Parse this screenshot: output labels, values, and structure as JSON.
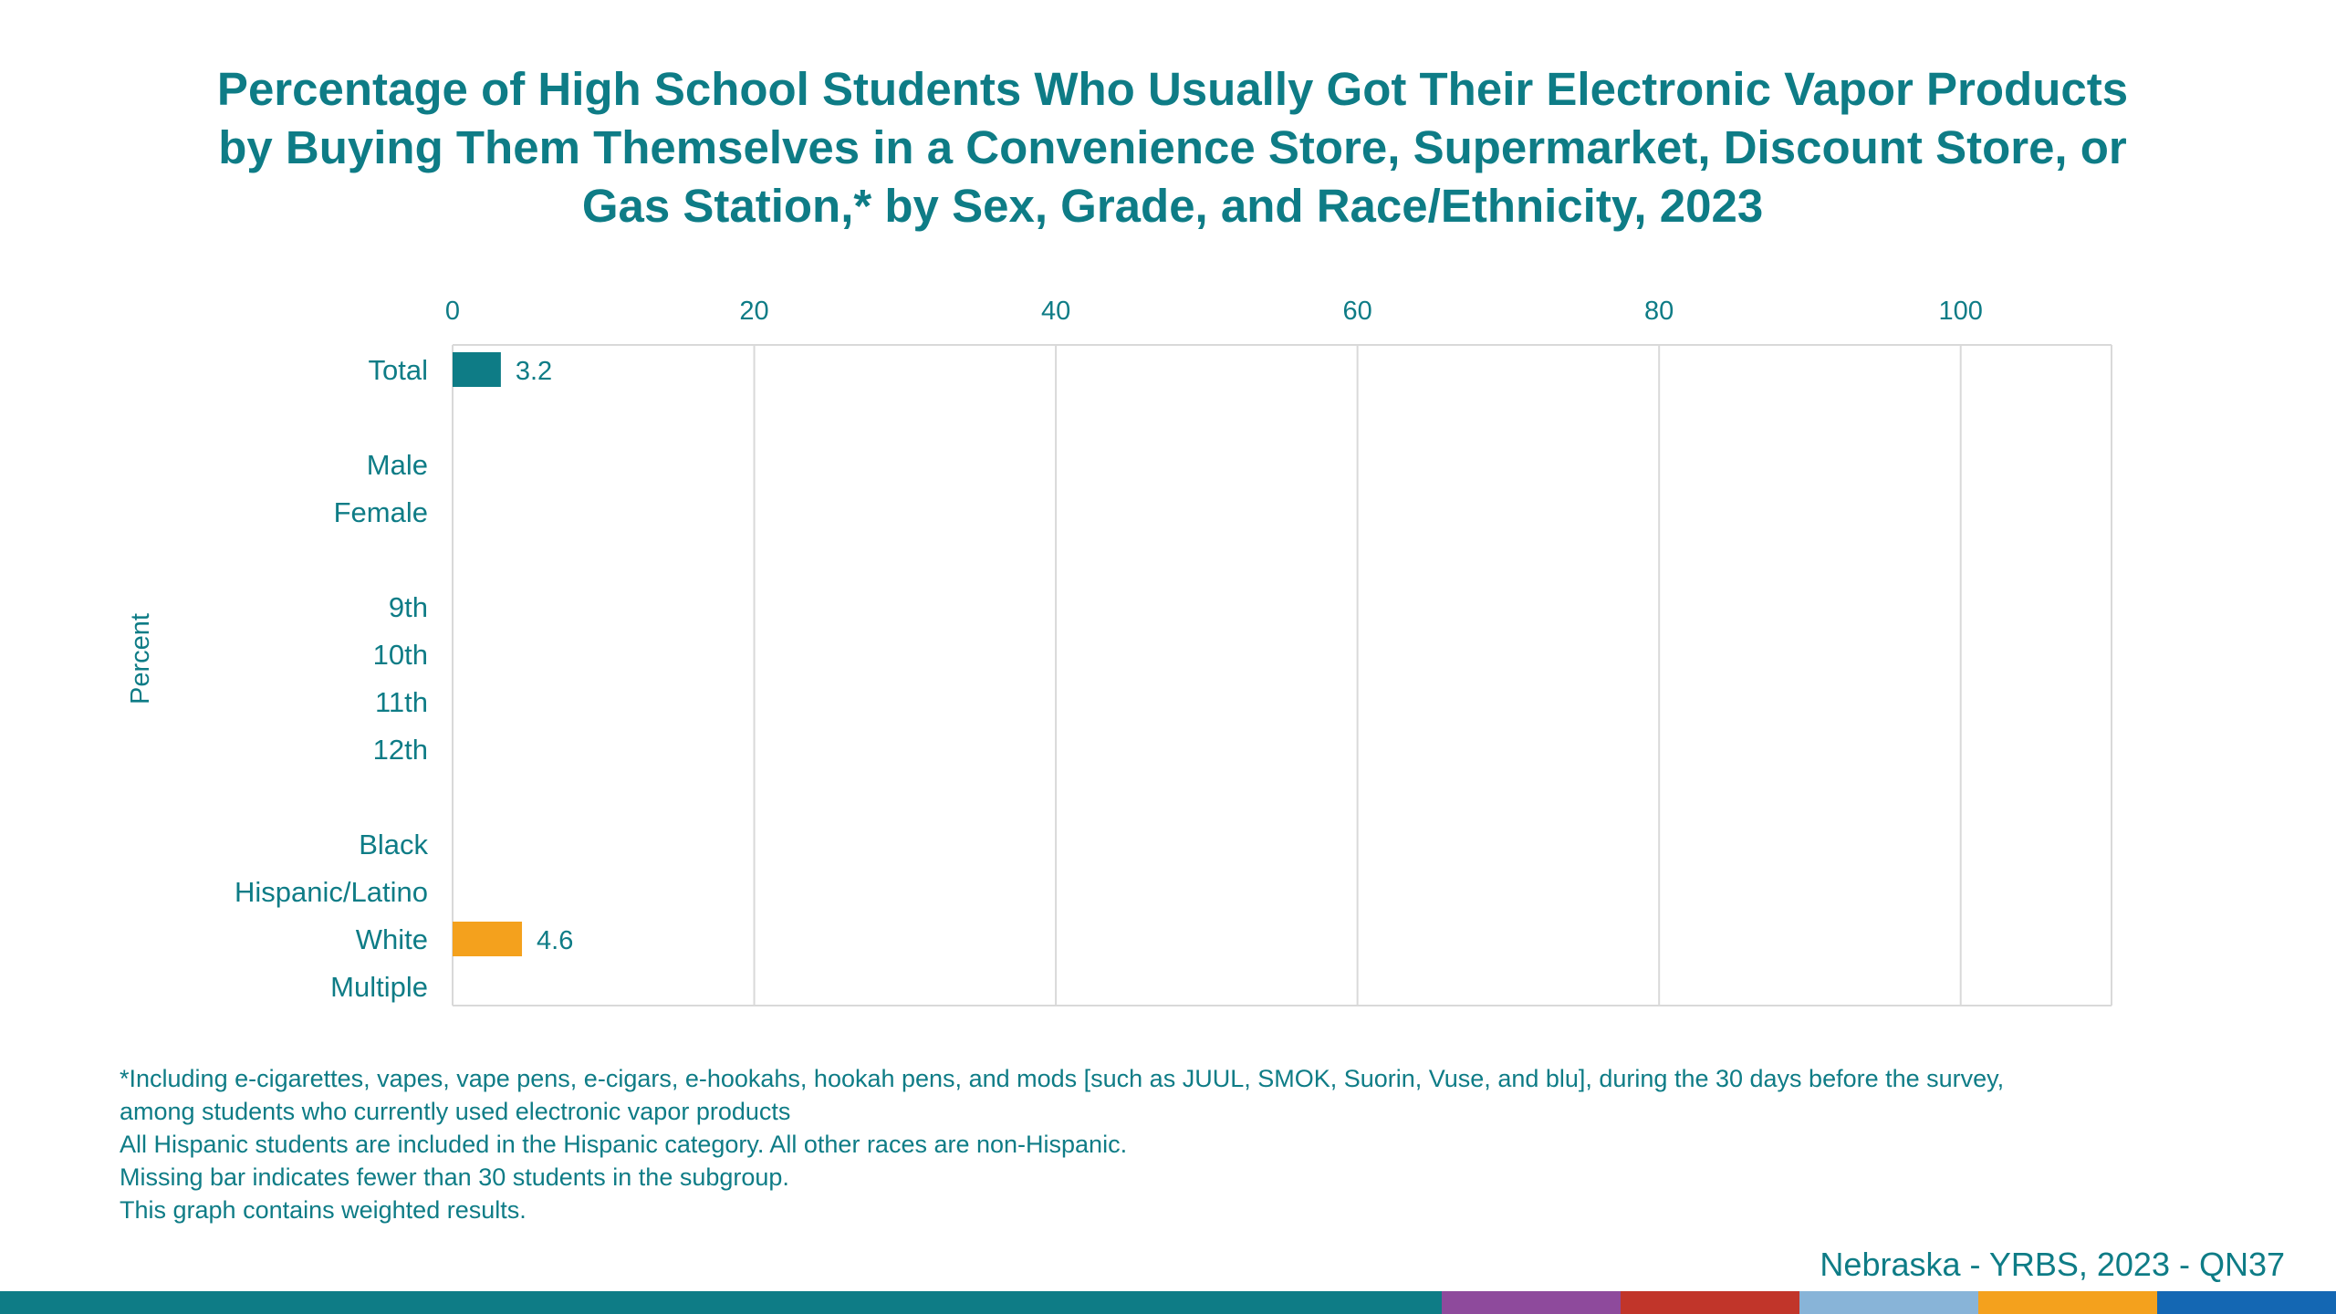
{
  "title_lines": [
    "Percentage of High School Students Who Usually Got Their Electronic Vapor Products",
    "by Buying Them Themselves in a Convenience Store, Supermarket, Discount Store, or",
    "Gas Station,* by Sex, Grade, and Race/Ethnicity, 2023"
  ],
  "chart_data": {
    "type": "bar",
    "orientation": "horizontal",
    "ylabel": "Percent",
    "xlim": [
      0,
      110
    ],
    "ticks": [
      0,
      20,
      40,
      60,
      80,
      100
    ],
    "grid": true,
    "categories": [
      {
        "label": "Total",
        "value": 3.2,
        "value_label": "3.2",
        "color": "#0e7c86"
      },
      {
        "label": "",
        "value": null,
        "spacer": true
      },
      {
        "label": "Male",
        "value": null
      },
      {
        "label": "Female",
        "value": null
      },
      {
        "label": "",
        "value": null,
        "spacer": true
      },
      {
        "label": "9th",
        "value": null
      },
      {
        "label": "10th",
        "value": null
      },
      {
        "label": "11th",
        "value": null
      },
      {
        "label": "12th",
        "value": null
      },
      {
        "label": "",
        "value": null,
        "spacer": true
      },
      {
        "label": "Black",
        "value": null
      },
      {
        "label": "Hispanic/Latino",
        "value": null
      },
      {
        "label": "White",
        "value": 4.6,
        "value_label": "4.6",
        "color": "#f4a11d"
      },
      {
        "label": "Multiple",
        "value": null
      }
    ]
  },
  "footnotes": [
    "*Including e-cigarettes, vapes, vape pens, e-cigars, e-hookahs, hookah pens, and mods [such as JUUL, SMOK, Suorin, Vuse, and blu], during the 30 days before the survey,",
    "among students who currently used electronic vapor products",
    "All Hispanic students are included in the Hispanic category.  All other races are non-Hispanic.",
    "Missing bar indicates fewer than 30 students in the subgroup.",
    "This graph contains weighted results."
  ],
  "source": "Nebraska - YRBS, 2023 - QN37",
  "colors": {
    "accent": "#0e7c86",
    "highlight": "#f4a11d",
    "grid": "#d9d9d9"
  },
  "bottom_bar_colors": [
    {
      "color": "#0e7c86",
      "weight": 1580
    },
    {
      "color": "#8e4a9c",
      "weight": 196
    },
    {
      "color": "#c1352a",
      "weight": 196
    },
    {
      "color": "#88b4d8",
      "weight": 196
    },
    {
      "color": "#f4a11d",
      "weight": 196
    },
    {
      "color": "#1467b3",
      "weight": 196
    }
  ]
}
